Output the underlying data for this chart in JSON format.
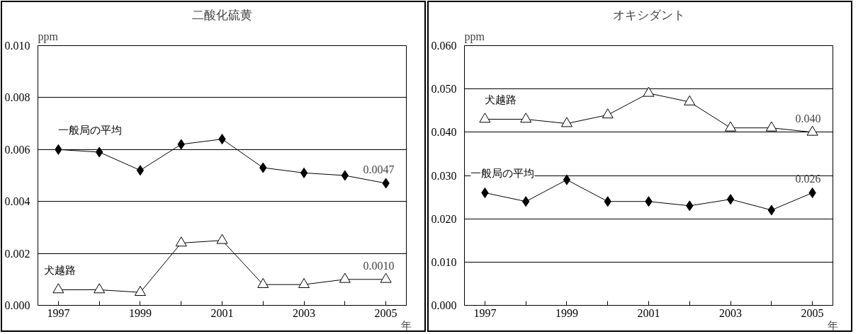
{
  "chart_data": [
    {
      "type": "line",
      "title": "二酸化硫黄",
      "ylabel": "ppm",
      "xlabel": "年",
      "categories": [
        "1997",
        null,
        "1999",
        null,
        "2001",
        null,
        "2003",
        null,
        "2005"
      ],
      "series": [
        {
          "name": "一般局の平均",
          "color": "#000000",
          "marker": "diamond",
          "values": [
            0.006,
            0.0059,
            0.0052,
            0.0062,
            0.0064,
            0.0053,
            0.0051,
            0.005,
            0.0047
          ]
        },
        {
          "name": "犬越路",
          "color": "#000000",
          "marker": "triangle",
          "values": [
            0.0006,
            0.0006,
            0.0005,
            0.0024,
            0.0025,
            0.0008,
            0.0008,
            0.001,
            0.001
          ]
        }
      ],
      "annotations": [
        {
          "text": "0.0047",
          "x": "2005",
          "y": 0.0047
        },
        {
          "text": "0.0010",
          "x": "2005",
          "y": 0.001
        }
      ],
      "ylim": [
        0,
        0.01
      ],
      "yticks": [
        {
          "value": 0,
          "label": "0.000"
        },
        {
          "value": 0.002,
          "label": "0.002"
        },
        {
          "value": 0.004,
          "label": "0.004"
        },
        {
          "value": 0.006,
          "label": "0.006"
        },
        {
          "value": 0.008,
          "label": "0.008"
        },
        {
          "value": 0.01,
          "label": "0.010"
        }
      ],
      "grid": "y",
      "legend": false
    },
    {
      "type": "line",
      "title": "オキシダント",
      "ylabel": "ppm",
      "xlabel": "年",
      "categories": [
        "1997",
        null,
        "1999",
        null,
        "2001",
        null,
        "2003",
        null,
        "2005"
      ],
      "series": [
        {
          "name": "犬越路",
          "color": "#000000",
          "marker": "triangle",
          "values": [
            0.043,
            0.043,
            0.042,
            0.044,
            0.049,
            0.047,
            0.041,
            0.041,
            0.04
          ]
        },
        {
          "name": "一般局の平均",
          "color": "#000000",
          "marker": "diamond",
          "values": [
            0.026,
            0.024,
            0.029,
            0.024,
            0.024,
            0.023,
            0.0245,
            0.022,
            0.026
          ]
        }
      ],
      "annotations": [
        {
          "text": "0.040",
          "x": "2005",
          "y": 0.04
        },
        {
          "text": "0.026",
          "x": "2005",
          "y": 0.026
        }
      ],
      "ylim": [
        0,
        0.06
      ],
      "yticks": [
        {
          "value": 0,
          "label": "0.000"
        },
        {
          "value": 0.01,
          "label": "0.010"
        },
        {
          "value": 0.02,
          "label": "0.020"
        },
        {
          "value": 0.03,
          "label": "0.030"
        },
        {
          "value": 0.04,
          "label": "0.040"
        },
        {
          "value": 0.05,
          "label": "0.050"
        },
        {
          "value": 0.06,
          "label": "0.060"
        }
      ],
      "grid": "y",
      "legend": false
    }
  ]
}
